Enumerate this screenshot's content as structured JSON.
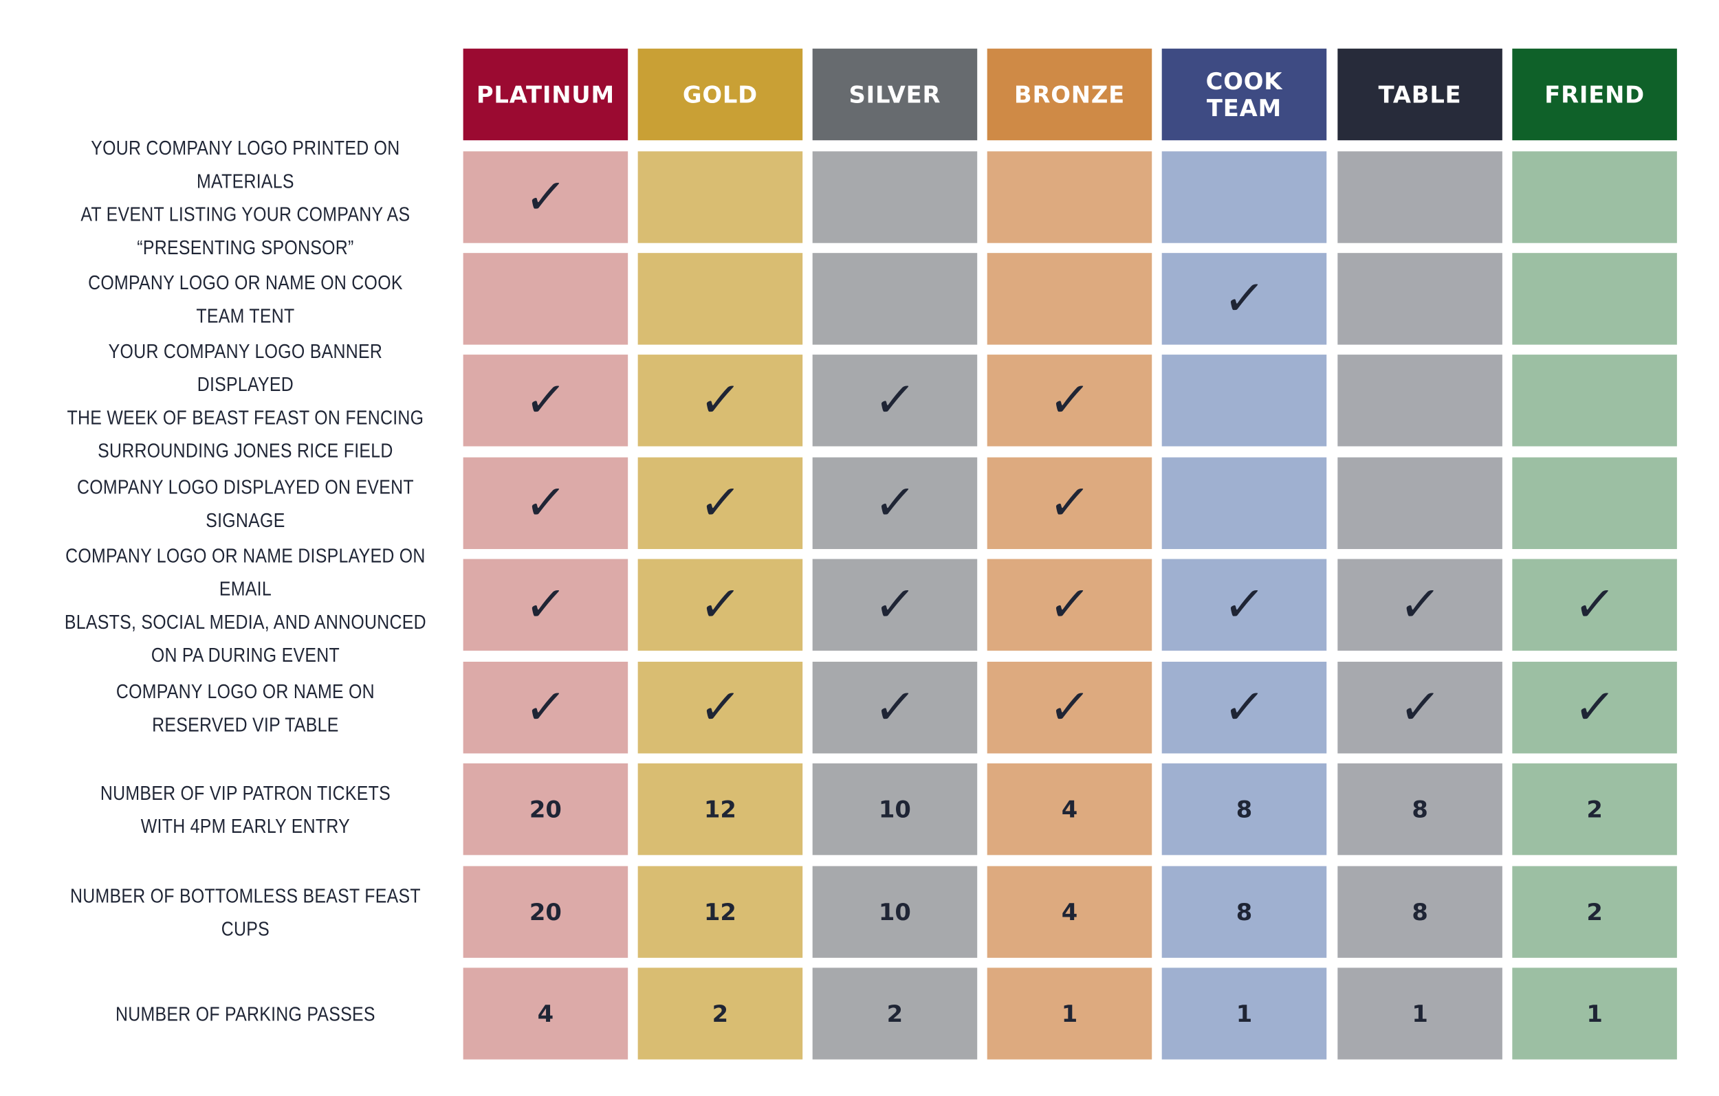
{
  "tiers": [
    {
      "key": "platinum",
      "label": "PLATINUM",
      "header_color": "#9b0a31",
      "cell_color": "#dcaaa8"
    },
    {
      "key": "gold",
      "label": "GOLD",
      "header_color": "#c9a035",
      "cell_color": "#d9bd72"
    },
    {
      "key": "silver",
      "label": "SILVER",
      "header_color": "#676b6f",
      "cell_color": "#a7a9ac"
    },
    {
      "key": "bronze",
      "label": "BRONZE",
      "header_color": "#cf8a46",
      "cell_color": "#ddaa7f"
    },
    {
      "key": "cook-team",
      "label": "COOK\nTEAM",
      "header_color": "#3e4b83",
      "cell_color": "#9fb0d0"
    },
    {
      "key": "table",
      "label": "TABLE",
      "header_color": "#272b3a",
      "cell_color": "#a7a9ae"
    },
    {
      "key": "friend",
      "label": "FRIEND",
      "header_color": "#0f6129",
      "cell_color": "#9cbfa3"
    }
  ],
  "check_symbol": "✓",
  "rows": [
    {
      "key": "presenting-sponsor",
      "label": "YOUR COMPANY LOGO PRINTED ON MATERIALS\nAT EVENT LISTING YOUR COMPANY AS\n“PRESENTING SPONSOR”",
      "values": [
        "check",
        "",
        "",
        "",
        "",
        "",
        ""
      ]
    },
    {
      "key": "cook-team-tent",
      "label": "COMPANY LOGO OR NAME ON COOK TEAM TENT",
      "values": [
        "",
        "",
        "",
        "",
        "check",
        "",
        ""
      ]
    },
    {
      "key": "banner-fencing",
      "label": "YOUR COMPANY LOGO BANNER DISPLAYED\nTHE WEEK OF BEAST FEAST ON FENCING\nSURROUNDING JONES RICE FIELD",
      "values": [
        "check",
        "check",
        "check",
        "check",
        "",
        "",
        ""
      ]
    },
    {
      "key": "event-signage",
      "label": "COMPANY LOGO DISPLAYED ON EVENT SIGNAGE",
      "values": [
        "check",
        "check",
        "check",
        "check",
        "",
        "",
        ""
      ]
    },
    {
      "key": "email-social-pa",
      "label": "COMPANY LOGO OR NAME DISPLAYED ON EMAIL\nBLASTS, SOCIAL MEDIA, AND ANNOUNCED\nON PA DURING EVENT",
      "values": [
        "check",
        "check",
        "check",
        "check",
        "check",
        "check",
        "check"
      ]
    },
    {
      "key": "vip-table",
      "label": "COMPANY LOGO OR NAME ON\nRESERVED VIP TABLE",
      "values": [
        "check",
        "check",
        "check",
        "check",
        "check",
        "check",
        "check"
      ]
    },
    {
      "key": "vip-tickets",
      "label": "NUMBER OF VIP PATRON TICKETS\nWITH 4PM EARLY ENTRY",
      "values": [
        "20",
        "12",
        "10",
        "4",
        "8",
        "8",
        "2"
      ]
    },
    {
      "key": "bottomless-cups",
      "label": "NUMBER OF BOTTOMLESS BEAST FEAST CUPS",
      "values": [
        "20",
        "12",
        "10",
        "4",
        "8",
        "8",
        "2"
      ]
    },
    {
      "key": "parking-passes",
      "label": "NUMBER OF PARKING PASSES",
      "values": [
        "4",
        "2",
        "2",
        "1",
        "1",
        "1",
        "1"
      ]
    }
  ]
}
